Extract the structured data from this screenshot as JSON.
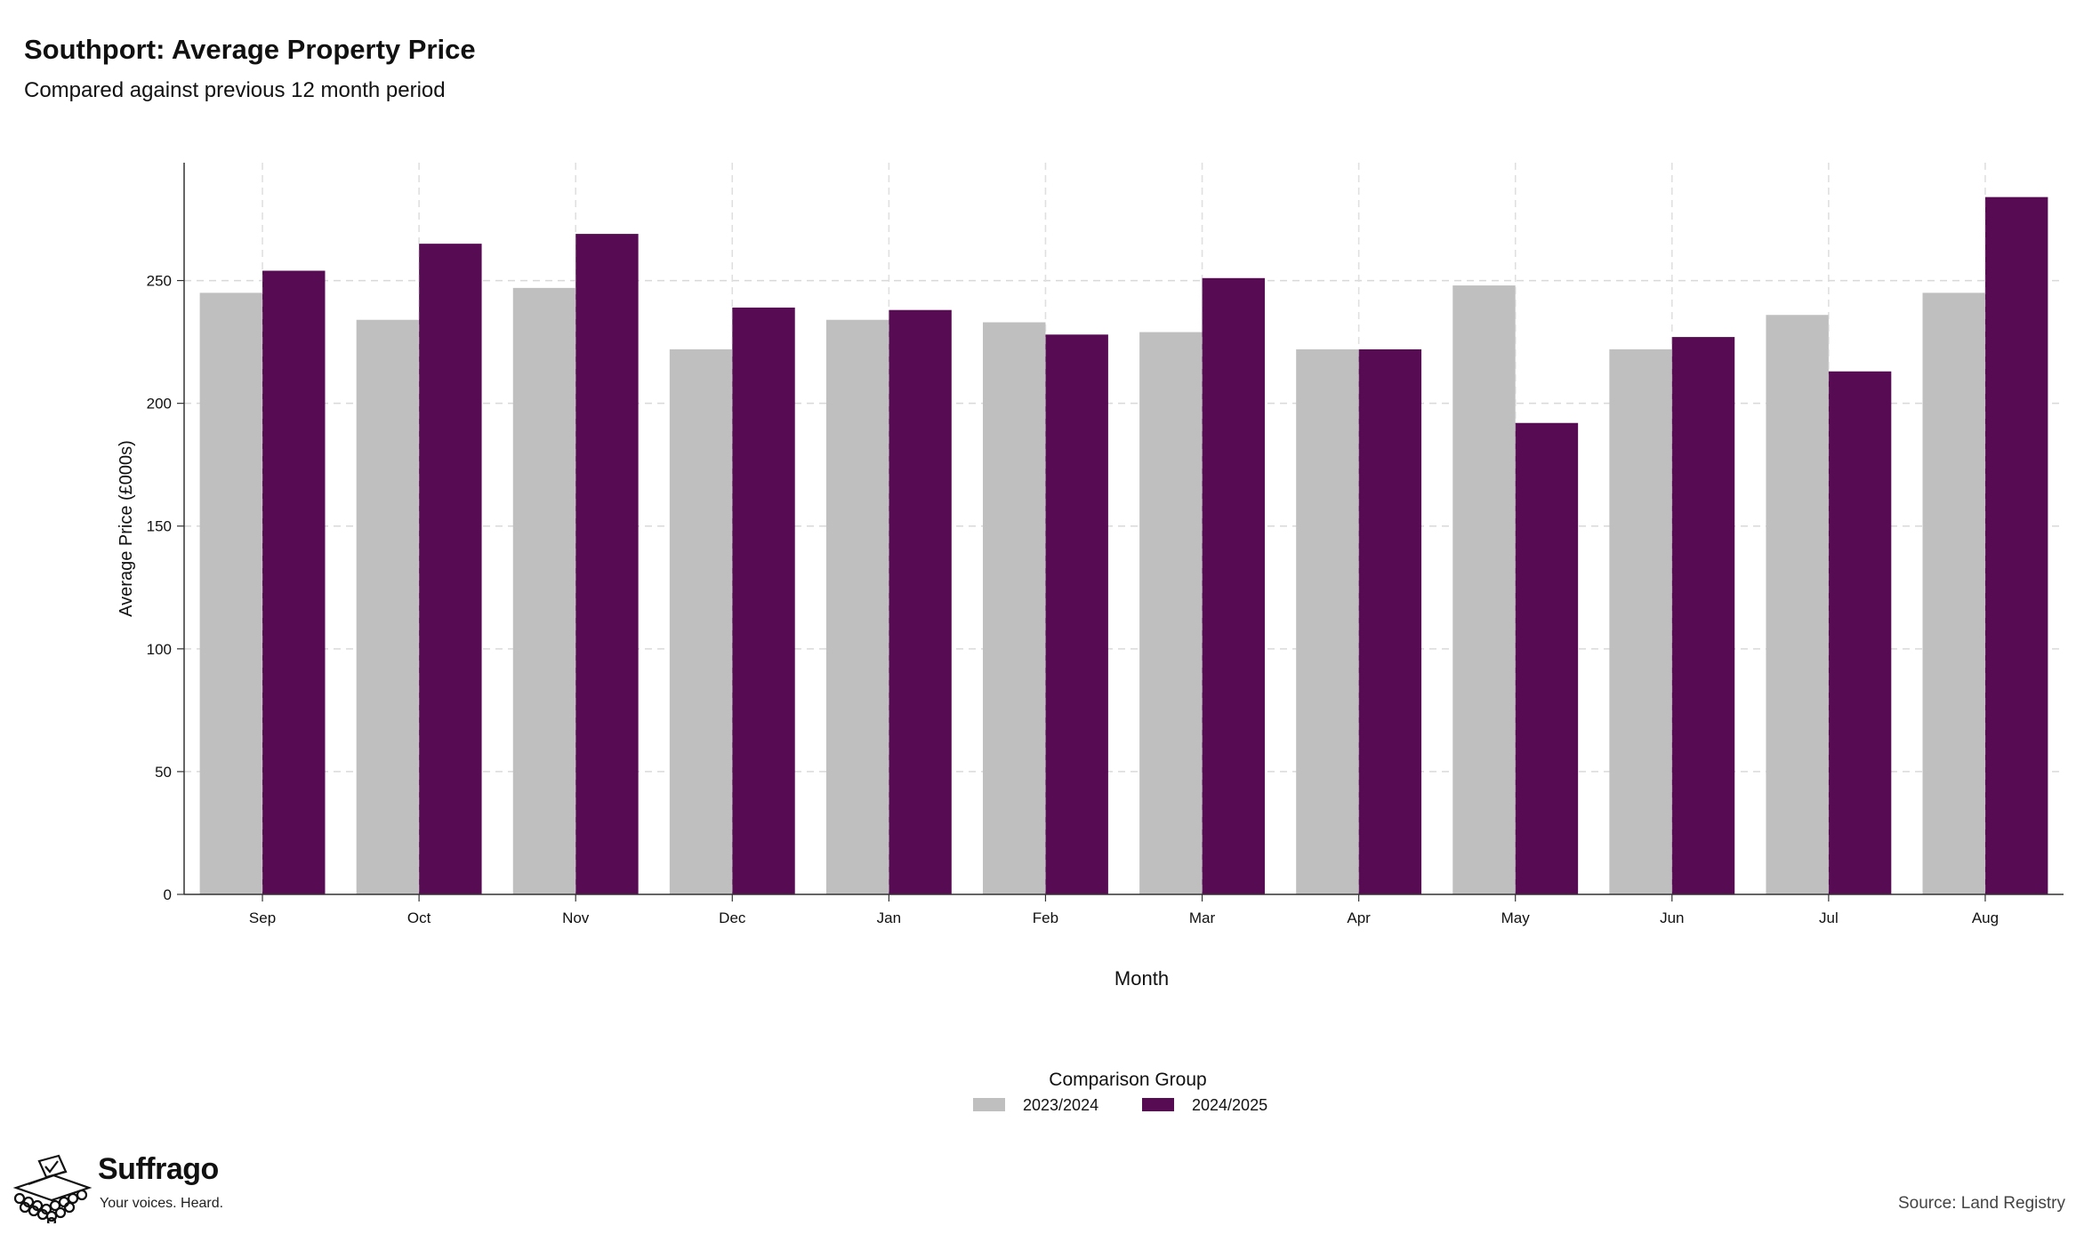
{
  "header": {
    "title": "Southport: Average Property Price",
    "subtitle": "Compared against previous 12 month period"
  },
  "chart_data": {
    "type": "bar",
    "categories": [
      "Sep",
      "Oct",
      "Nov",
      "Dec",
      "Jan",
      "Feb",
      "Mar",
      "Apr",
      "May",
      "Jun",
      "Jul",
      "Aug"
    ],
    "series": [
      {
        "name": "2023/2024",
        "color": "#bfbfbf",
        "values": [
          245,
          234,
          247,
          222,
          234,
          233,
          229,
          222,
          248,
          222,
          236,
          245
        ]
      },
      {
        "name": "2024/2025",
        "color": "#560b52",
        "values": [
          254,
          265,
          269,
          239,
          238,
          228,
          251,
          222,
          192,
          227,
          213,
          284
        ]
      }
    ],
    "xlabel": "Month",
    "ylabel": "Average Price (£000s)",
    "ylim": [
      0,
      298
    ],
    "yticks": [
      0,
      50,
      100,
      150,
      200,
      250
    ],
    "grid": true,
    "legend": {
      "title": "Comparison Group",
      "position": "bottom-center"
    }
  },
  "footer": {
    "source": "Source: Land Registry",
    "brand_name": "Suffrago",
    "brand_tagline": "Your voices. Heard."
  }
}
